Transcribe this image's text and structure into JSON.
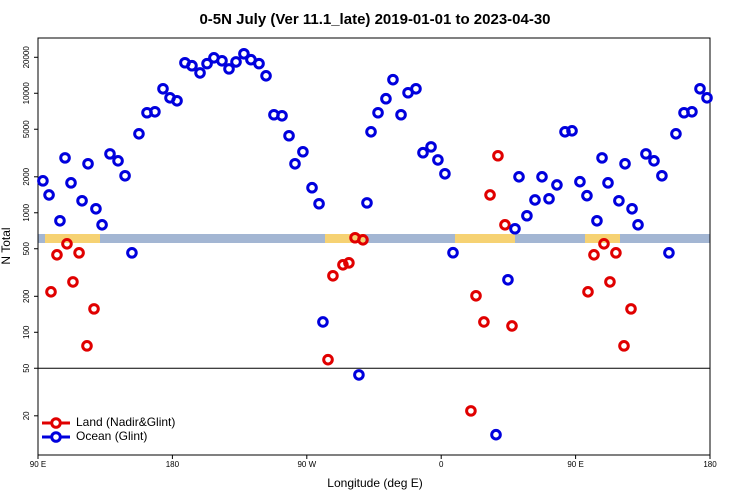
{
  "chart_data": {
    "type": "scatter",
    "title": "0-5N July (Ver 11.1_late)   2019-01-01 to 2023-04-30",
    "x_label": "Longitude (deg E)",
    "y_label": "N Total",
    "y_log": true,
    "legend": "lower left",
    "hline": 50,
    "xlim": [
      90,
      540
    ],
    "ylim": [
      9.4,
      29000
    ],
    "xticks": [
      {
        "value": 90,
        "label": "90 E"
      },
      180,
      {
        "value": 270,
        "label": "90 W"
      },
      {
        "value": 360,
        "label": "0"
      },
      {
        "value": 450,
        "label": "90 E"
      },
      {
        "value": 540,
        "label": "180"
      }
    ],
    "yticks": [
      20,
      50,
      100,
      200,
      500,
      1000,
      2000,
      5000,
      10000,
      20000
    ],
    "series": [
      {
        "name": "Land (Nadir&Glint)",
        "color": "#e00000",
        "x": [
          98.7,
          102.7,
          109.4,
          113.4,
          117.5,
          122.8,
          127.5,
          284.2,
          287.5,
          294.2,
          298.2,
          302.3,
          307.6,
          379.9,
          383.3,
          388.6,
          392.7,
          398.0,
          402.7,
          407.4,
          458.3,
          462.3,
          469.0,
          473.0,
          477.0,
          482.4,
          487.1
        ],
        "values": [
          218,
          445,
          550,
          264,
          462,
          77,
          157,
          59,
          297,
          367,
          381,
          618,
          594,
          22,
          202,
          122,
          1410,
          3000,
          793,
          113,
          218,
          445,
          550,
          264,
          462,
          77,
          157
        ]
      },
      {
        "name": "Ocean (Glint)",
        "color": "#0000dd",
        "x": [
          93.3,
          97.4,
          104.7,
          108.1,
          112.1,
          119.5,
          123.5,
          128.8,
          132.9,
          138.2,
          143.6,
          148.3,
          152.9,
          157.6,
          163.0,
          168.3,
          173.7,
          178.4,
          183.1,
          188.4,
          193.1,
          198.5,
          203.2,
          207.8,
          213.2,
          217.9,
          222.6,
          227.9,
          232.6,
          238.0,
          242.7,
          248.0,
          253.4,
          258.1,
          262.1,
          267.4,
          273.5,
          278.2,
          280.8,
          304.9,
          310.3,
          313.0,
          317.7,
          323.0,
          327.7,
          333.1,
          337.8,
          343.1,
          347.8,
          353.2,
          357.8,
          362.5,
          367.9,
          396.7,
          404.7,
          409.4,
          412.1,
          417.4,
          422.8,
          427.5,
          432.2,
          437.5,
          442.9,
          447.6,
          452.9,
          457.6,
          464.3,
          467.7,
          471.7,
          479.0,
          483.1,
          487.8,
          491.8,
          497.1,
          502.5,
          507.8,
          512.5,
          517.2,
          522.6,
          527.9,
          533.3,
          538.0
        ],
        "values": [
          1850,
          1410,
          857,
          2880,
          1780,
          1260,
          2570,
          1080,
          793,
          3110,
          2720,
          2040,
          462,
          4580,
          6870,
          7000,
          10900,
          9160,
          8650,
          18000,
          17000,
          14800,
          17700,
          19800,
          18700,
          16000,
          18300,
          21400,
          19100,
          17700,
          14000,
          6610,
          6480,
          4410,
          2570,
          3240,
          1620,
          1190,
          122,
          44,
          1210,
          4760,
          6870,
          9000,
          13000,
          6610,
          10100,
          10900,
          3180,
          3560,
          2770,
          2120,
          463,
          13.9,
          275,
          735,
          2000,
          944,
          1280,
          2000,
          1310,
          1710,
          4760,
          4850,
          1820,
          1390,
          857,
          2880,
          1780,
          1260,
          2570,
          1080,
          793,
          3110,
          2720,
          2040,
          462,
          4580,
          6870,
          7000,
          10900,
          9160
        ]
      }
    ]
  }
}
